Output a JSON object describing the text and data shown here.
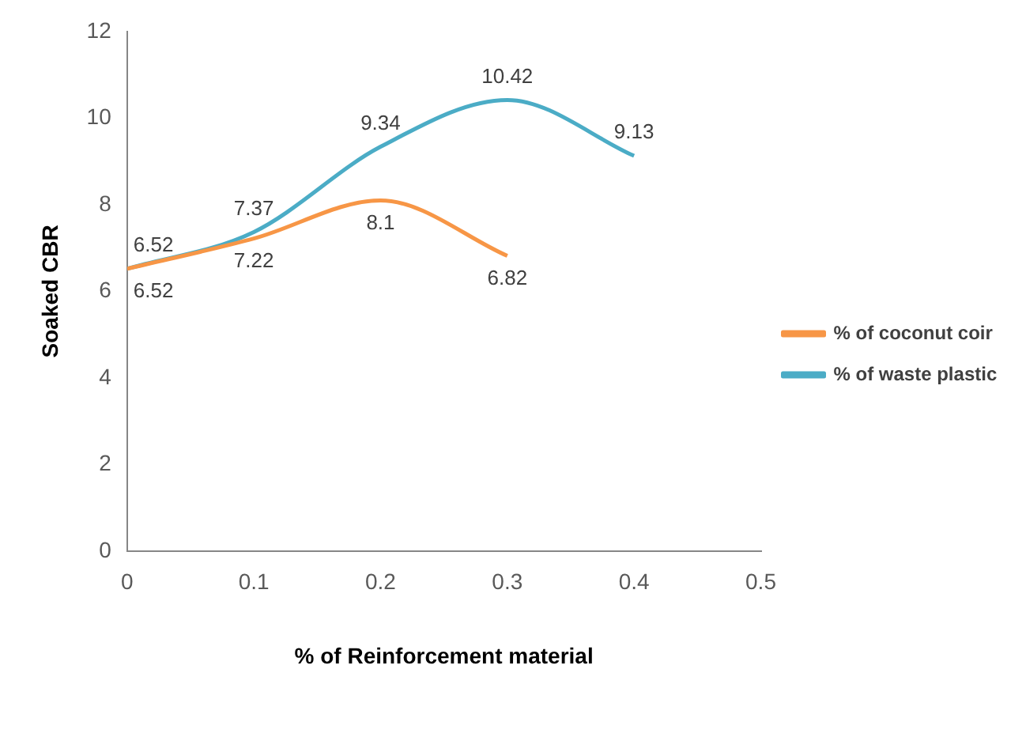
{
  "chart_data": {
    "type": "line",
    "xlabel": "% of Reinforcement material",
    "ylabel": "Soaked CBR",
    "series": [
      {
        "name": "% of coconut coir",
        "color": "#f79646",
        "x": [
          0,
          0.1,
          0.2,
          0.3
        ],
        "values": [
          6.52,
          7.22,
          8.1,
          6.82
        ]
      },
      {
        "name": "% of waste plastic",
        "color": "#4bacc6",
        "x": [
          0,
          0.1,
          0.2,
          0.3,
          0.4
        ],
        "values": [
          6.52,
          7.37,
          9.34,
          10.42,
          9.13
        ]
      }
    ],
    "xlim": [
      0,
      0.5
    ],
    "xticks": [
      0,
      0.1,
      0.2,
      0.3,
      0.4,
      0.5
    ],
    "ylim": [
      0,
      12
    ],
    "yticks": [
      0,
      2,
      4,
      6,
      8,
      10,
      12
    ],
    "grid": false,
    "legend": "right",
    "marker": "none",
    "line_style": "solid",
    "data_labels": true
  }
}
